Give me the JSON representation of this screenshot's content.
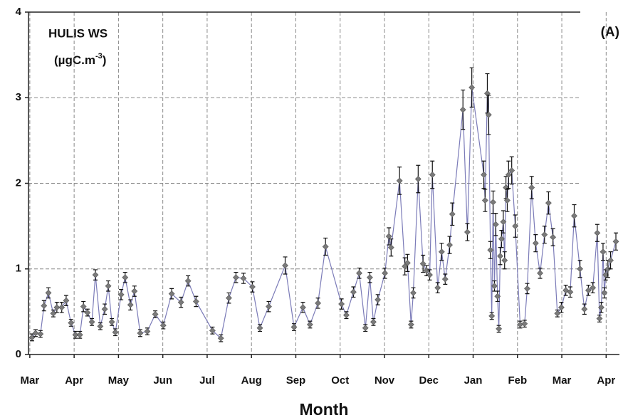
{
  "chart_data": {
    "type": "line",
    "annotations": {
      "title": "HULIS WS",
      "unit": {
        "text": "(µgC.m",
        "sup": "-3",
        "suffix": ")"
      },
      "panel": "(A)"
    },
    "x_label": "Month",
    "xlim": [
      -0.03,
      13.3
    ],
    "xticks": [
      {
        "value": 0,
        "label": "Mar"
      },
      {
        "value": 1,
        "label": "Apr"
      },
      {
        "value": 2,
        "label": "May"
      },
      {
        "value": 3,
        "label": "Jun"
      },
      {
        "value": 4,
        "label": "Jul"
      },
      {
        "value": 5,
        "label": "Aug"
      },
      {
        "value": 6,
        "label": "Sep"
      },
      {
        "value": 7,
        "label": "Oct"
      },
      {
        "value": 8,
        "label": "Nov"
      },
      {
        "value": 9,
        "label": "Dec"
      },
      {
        "value": 10,
        "label": "Jan"
      },
      {
        "value": 11,
        "label": "Feb"
      },
      {
        "value": 12,
        "label": "Mar"
      },
      {
        "value": 13,
        "label": "Apr"
      }
    ],
    "ylim": [
      0,
      4
    ],
    "yticks": [
      0,
      1,
      2,
      3,
      4
    ],
    "grid": true,
    "line_color": "#7b7bb8",
    "marker_color": "#7a7a7a",
    "error_color": "#111111",
    "x": [
      0.05,
      0.13,
      0.24,
      0.32,
      0.42,
      0.53,
      0.61,
      0.72,
      0.82,
      0.93,
      1.03,
      1.13,
      1.21,
      1.3,
      1.4,
      1.48,
      1.59,
      1.69,
      1.77,
      1.85,
      1.93,
      2.06,
      2.15,
      2.27,
      2.36,
      2.49,
      2.65,
      2.83,
      3.01,
      3.2,
      3.41,
      3.57,
      3.75,
      4.12,
      4.31,
      4.49,
      4.65,
      4.82,
      5.02,
      5.19,
      5.39,
      5.76,
      5.96,
      6.16,
      6.32,
      6.5,
      6.67,
      7.03,
      7.14,
      7.3,
      7.43,
      7.57,
      7.67,
      7.75,
      7.85,
      8.01,
      8.1,
      8.15,
      8.34,
      8.46,
      8.52,
      8.6,
      8.65,
      8.76,
      8.87,
      8.95,
      9.02,
      9.08,
      9.2,
      9.29,
      9.37,
      9.47,
      9.53,
      9.77,
      9.87,
      9.97,
      10.24,
      10.27,
      10.32,
      10.35,
      10.39,
      10.42,
      10.45,
      10.48,
      10.51,
      10.55,
      10.58,
      10.61,
      10.64,
      10.68,
      10.71,
      10.74,
      10.77,
      10.8,
      10.87,
      10.95,
      11.06,
      11.16,
      11.22,
      11.32,
      11.41,
      11.51,
      11.61,
      11.7,
      11.8,
      11.9,
      11.99,
      12.09,
      12.19,
      12.28,
      12.41,
      12.51,
      12.6,
      12.7,
      12.8,
      12.85,
      12.89,
      12.93,
      12.96,
      12.99,
      13.04,
      13.1,
      13.22
    ],
    "values": [
      0.2,
      0.25,
      0.24,
      0.57,
      0.72,
      0.48,
      0.55,
      0.55,
      0.63,
      0.37,
      0.23,
      0.23,
      0.56,
      0.49,
      0.38,
      0.93,
      0.33,
      0.53,
      0.8,
      0.38,
      0.26,
      0.7,
      0.9,
      0.58,
      0.74,
      0.25,
      0.27,
      0.47,
      0.34,
      0.71,
      0.61,
      0.86,
      0.62,
      0.28,
      0.19,
      0.66,
      0.9,
      0.89,
      0.79,
      0.31,
      0.56,
      1.04,
      0.32,
      0.55,
      0.35,
      0.6,
      1.26,
      0.59,
      0.46,
      0.73,
      0.95,
      0.31,
      0.9,
      0.38,
      0.64,
      0.95,
      1.38,
      1.25,
      2.03,
      1.03,
      1.07,
      0.35,
      0.72,
      2.05,
      1.06,
      0.98,
      0.93,
      2.1,
      0.78,
      1.2,
      0.88,
      1.28,
      1.64,
      2.86,
      1.43,
      3.12,
      2.1,
      1.8,
      3.05,
      2.8,
      1.22,
      0.45,
      1.78,
      0.8,
      1.52,
      0.68,
      0.3,
      1.15,
      1.35,
      1.55,
      1.1,
      1.95,
      1.8,
      2.1,
      2.15,
      1.5,
      0.35,
      0.36,
      0.77,
      1.95,
      1.3,
      0.95,
      1.4,
      1.77,
      1.37,
      0.48,
      0.55,
      0.75,
      0.73,
      1.62,
      1.0,
      0.53,
      0.75,
      0.78,
      1.42,
      0.42,
      0.55,
      1.2,
      0.72,
      0.93,
      1.0,
      1.1,
      1.32
    ],
    "errors": [
      0.04,
      0.04,
      0.04,
      0.06,
      0.06,
      0.04,
      0.06,
      0.06,
      0.06,
      0.04,
      0.04,
      0.04,
      0.06,
      0.04,
      0.04,
      0.06,
      0.04,
      0.06,
      0.06,
      0.04,
      0.04,
      0.06,
      0.06,
      0.06,
      0.06,
      0.04,
      0.04,
      0.04,
      0.04,
      0.06,
      0.06,
      0.06,
      0.06,
      0.04,
      0.04,
      0.06,
      0.06,
      0.06,
      0.06,
      0.04,
      0.06,
      0.1,
      0.04,
      0.06,
      0.04,
      0.06,
      0.1,
      0.06,
      0.04,
      0.06,
      0.06,
      0.04,
      0.06,
      0.04,
      0.06,
      0.06,
      0.1,
      0.1,
      0.16,
      0.1,
      0.1,
      0.04,
      0.06,
      0.16,
      0.1,
      0.06,
      0.06,
      0.16,
      0.06,
      0.1,
      0.06,
      0.1,
      0.13,
      0.23,
      0.1,
      0.23,
      0.16,
      0.13,
      0.23,
      0.23,
      0.1,
      0.04,
      0.13,
      0.06,
      0.13,
      0.06,
      0.04,
      0.1,
      0.1,
      0.13,
      0.1,
      0.13,
      0.13,
      0.16,
      0.16,
      0.13,
      0.04,
      0.04,
      0.06,
      0.13,
      0.1,
      0.06,
      0.1,
      0.13,
      0.1,
      0.04,
      0.06,
      0.06,
      0.06,
      0.13,
      0.1,
      0.06,
      0.06,
      0.06,
      0.1,
      0.04,
      0.06,
      0.1,
      0.06,
      0.06,
      0.1,
      0.1,
      0.1
    ]
  }
}
